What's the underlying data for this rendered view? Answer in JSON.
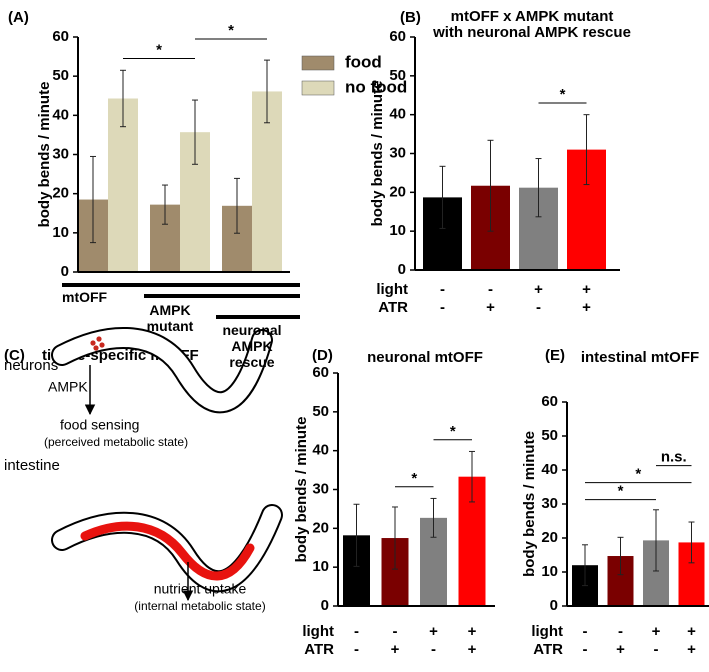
{
  "chart_data": [
    {
      "type": "bar",
      "panel_label": "(A)",
      "ylabel": "body bends / minute",
      "categories": [
        null,
        null,
        null
      ],
      "series": [
        {
          "name": "food",
          "color": "#a08b6c",
          "values": [
            18.5,
            17.2,
            16.9
          ],
          "errors": [
            11,
            5,
            7
          ]
        },
        {
          "name": "no food",
          "color": "#ddd9b9",
          "values": [
            44.3,
            35.7,
            46.1
          ],
          "errors": [
            7.2,
            8.2,
            8
          ]
        }
      ],
      "ylim": [
        0,
        60
      ],
      "yticks": [
        0,
        10,
        20,
        30,
        40,
        50,
        60
      ],
      "comparisons": [
        {
          "label": "*",
          "from": 1,
          "to": 3
        },
        {
          "label": "*",
          "from": 3,
          "to": 5
        }
      ],
      "genotypes": [
        {
          "label": [
            "mtOFF"
          ],
          "from": 0,
          "to": 2
        },
        {
          "label": [
            "AMPK",
            "mutant"
          ],
          "from": 1,
          "to": 2
        },
        {
          "label": [
            "neuronal",
            "AMPK",
            "rescue"
          ],
          "from": 2,
          "to": 2
        }
      ]
    },
    {
      "type": "bar",
      "panel_label": "(B)",
      "title": [
        "mtOFF x AMPK mutant",
        "with neuronal AMPK rescue"
      ],
      "ylabel": "body bends / minute",
      "values": [
        18.7,
        21.7,
        21.2,
        31
      ],
      "errors": [
        8,
        11.7,
        7.5,
        9
      ],
      "colors": [
        "#000000",
        "#7a0000",
        "#808080",
        "#ff0000"
      ],
      "ylim": [
        0,
        60
      ],
      "yticks": [
        0,
        10,
        20,
        30,
        40,
        50,
        60
      ],
      "comparisons": [
        {
          "label": "*",
          "from": 2,
          "to": 3
        }
      ],
      "conditions": [
        {
          "name": "light",
          "values": [
            "-",
            "-",
            "+",
            "+"
          ]
        },
        {
          "name": "ATR",
          "values": [
            "-",
            "+",
            "-",
            "+"
          ]
        }
      ]
    },
    {
      "type": "bar",
      "panel_label": "(D)",
      "title": [
        "neuronal mtOFF"
      ],
      "ylabel": "body bends / minute",
      "values": [
        18.2,
        17.5,
        22.7,
        33.3
      ],
      "errors": [
        8,
        8,
        5,
        6.5
      ],
      "colors": [
        "#000000",
        "#7a0000",
        "#808080",
        "#ff0000"
      ],
      "ylim": [
        0,
        60
      ],
      "yticks": [
        0,
        10,
        20,
        30,
        40,
        50,
        60
      ],
      "comparisons": [
        {
          "label": "*",
          "from": 1,
          "to": 2
        },
        {
          "label": "*",
          "from": 2,
          "to": 3
        }
      ],
      "conditions": [
        {
          "name": "light",
          "values": [
            "-",
            "-",
            "+",
            "+"
          ]
        },
        {
          "name": "ATR",
          "values": [
            "-",
            "+",
            "-",
            "+"
          ]
        }
      ]
    },
    {
      "type": "bar",
      "panel_label": "(E)",
      "title": [
        "intestinal mtOFF"
      ],
      "ylabel": "body bends / minute",
      "values": [
        12,
        14.7,
        19.3,
        18.7
      ],
      "errors": [
        6,
        5.5,
        9,
        6
      ],
      "colors": [
        "#000000",
        "#7a0000",
        "#808080",
        "#ff0000"
      ],
      "ylim": [
        0,
        60
      ],
      "yticks": [
        0,
        10,
        20,
        30,
        40,
        50,
        60
      ],
      "comparisons": [
        {
          "label": "*",
          "from": 0,
          "to": 2
        },
        {
          "label": "*",
          "from": 0,
          "to": 3
        },
        {
          "label": "n.s.",
          "from": 2,
          "to": 3
        }
      ],
      "conditions": [
        {
          "name": "light",
          "values": [
            "-",
            "-",
            "+",
            "+"
          ]
        },
        {
          "name": "ATR",
          "values": [
            "-",
            "+",
            "-",
            "+"
          ]
        }
      ]
    }
  ],
  "diagram": {
    "panel_label": "(C)",
    "title": "tissue-specific mtOFF",
    "neurons": "neurons",
    "ampk": "AMPK",
    "food_sensing": "food sensing",
    "food_sensing_note": "(perceived metabolic state)",
    "intestine": "intestine",
    "nutrient_uptake": "nutrient uptake",
    "nutrient_uptake_note": "(internal metabolic state)"
  }
}
